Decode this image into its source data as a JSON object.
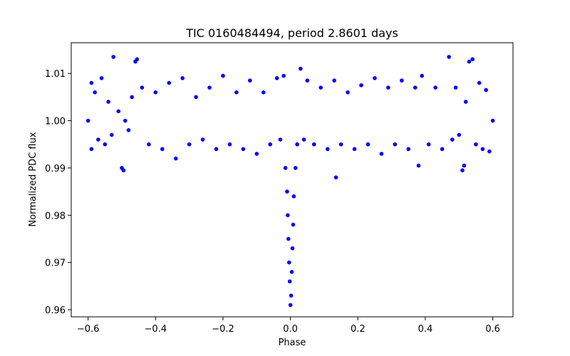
{
  "chart_data": {
    "type": "scatter",
    "title": "TIC 0160484494, period 2.8601 days",
    "xlabel": "Phase",
    "ylabel": "Normalized PDC flux",
    "xlim": [
      -0.65,
      0.66
    ],
    "ylim": [
      0.9585,
      1.0165
    ],
    "xticks": [
      -0.6,
      -0.4,
      -0.2,
      0.0,
      0.2,
      0.4,
      0.6
    ],
    "xtick_labels": [
      "−0.6",
      "−0.4",
      "−0.2",
      "0.0",
      "0.2",
      "0.4",
      "0.6"
    ],
    "yticks": [
      0.96,
      0.97,
      0.98,
      0.99,
      1.0,
      1.01
    ],
    "ytick_labels": [
      "0.96",
      "0.97",
      "0.98",
      "0.99",
      "1.00",
      "1.01"
    ],
    "grid": false,
    "marker_color": "#0000ff",
    "series": [
      {
        "points": [
          [
            -0.6,
            1.0
          ],
          [
            -0.59,
            1.008
          ],
          [
            -0.59,
            0.994
          ],
          [
            -0.58,
            1.006
          ],
          [
            -0.57,
            0.996
          ],
          [
            -0.56,
            1.009
          ],
          [
            -0.55,
            0.995
          ],
          [
            -0.54,
            1.004
          ],
          [
            -0.53,
            0.997
          ],
          [
            -0.525,
            1.0135
          ],
          [
            -0.51,
            1.002
          ],
          [
            -0.5,
            0.99
          ],
          [
            -0.495,
            0.9895
          ],
          [
            -0.49,
            1.0
          ],
          [
            -0.48,
            0.998
          ],
          [
            -0.47,
            1.005
          ],
          [
            -0.46,
            1.0125
          ],
          [
            -0.455,
            1.013
          ],
          [
            -0.44,
            1.007
          ],
          [
            -0.42,
            0.995
          ],
          [
            -0.4,
            1.006
          ],
          [
            -0.38,
            0.994
          ],
          [
            -0.36,
            1.008
          ],
          [
            -0.34,
            0.992
          ],
          [
            -0.32,
            1.009
          ],
          [
            -0.3,
            0.995
          ],
          [
            -0.28,
            1.005
          ],
          [
            -0.26,
            0.996
          ],
          [
            -0.24,
            1.007
          ],
          [
            -0.22,
            0.994
          ],
          [
            -0.2,
            1.0095
          ],
          [
            -0.18,
            0.995
          ],
          [
            -0.16,
            1.006
          ],
          [
            -0.14,
            0.994
          ],
          [
            -0.12,
            1.0085
          ],
          [
            -0.1,
            0.993
          ],
          [
            -0.08,
            1.006
          ],
          [
            -0.06,
            0.995
          ],
          [
            -0.04,
            1.009
          ],
          [
            -0.03,
            0.996
          ],
          [
            -0.02,
            1.0095
          ],
          [
            -0.015,
            0.99
          ],
          [
            -0.01,
            0.985
          ],
          [
            -0.008,
            0.98
          ],
          [
            -0.006,
            0.975
          ],
          [
            -0.004,
            0.97
          ],
          [
            -0.002,
            0.966
          ],
          [
            0.0,
            0.961
          ],
          [
            0.002,
            0.963
          ],
          [
            0.004,
            0.968
          ],
          [
            0.006,
            0.973
          ],
          [
            0.008,
            0.978
          ],
          [
            0.01,
            0.984
          ],
          [
            0.015,
            0.99
          ],
          [
            0.02,
            0.995
          ],
          [
            0.03,
            1.011
          ],
          [
            0.04,
            0.996
          ],
          [
            0.05,
            1.0085
          ],
          [
            0.07,
            0.995
          ],
          [
            0.09,
            1.007
          ],
          [
            0.11,
            0.994
          ],
          [
            0.13,
            1.0085
          ],
          [
            0.135,
            0.988
          ],
          [
            0.15,
            0.995
          ],
          [
            0.17,
            1.006
          ],
          [
            0.19,
            0.994
          ],
          [
            0.21,
            1.0075
          ],
          [
            0.23,
            0.995
          ],
          [
            0.25,
            1.009
          ],
          [
            0.27,
            0.993
          ],
          [
            0.29,
            1.007
          ],
          [
            0.31,
            0.995
          ],
          [
            0.33,
            1.0085
          ],
          [
            0.35,
            0.994
          ],
          [
            0.37,
            1.007
          ],
          [
            0.38,
            0.9905
          ],
          [
            0.39,
            1.0095
          ],
          [
            0.41,
            0.995
          ],
          [
            0.43,
            1.007
          ],
          [
            0.45,
            0.994
          ],
          [
            0.47,
            1.0135
          ],
          [
            0.48,
            0.996
          ],
          [
            0.49,
            1.007
          ],
          [
            0.5,
            0.997
          ],
          [
            0.51,
            0.9895
          ],
          [
            0.515,
            0.9905
          ],
          [
            0.52,
            1.004
          ],
          [
            0.53,
            1.0125
          ],
          [
            0.54,
            1.013
          ],
          [
            0.55,
            0.995
          ],
          [
            0.56,
            1.008
          ],
          [
            0.57,
            0.994
          ],
          [
            0.58,
            1.0065
          ],
          [
            0.59,
            0.9935
          ],
          [
            0.6,
            1.0
          ]
        ]
      }
    ]
  }
}
